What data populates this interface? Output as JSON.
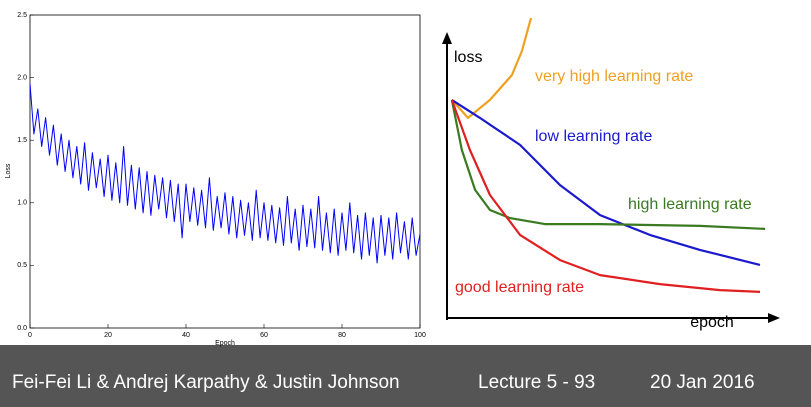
{
  "chart_data": [
    {
      "type": "line",
      "xlabel": "Epoch",
      "ylabel": "Loss",
      "xlim": [
        0,
        100
      ],
      "ylim": [
        0,
        2.5
      ],
      "xticks": [
        0,
        20,
        40,
        60,
        80,
        100
      ],
      "yticks": [
        {
          "value": 0,
          "label": "0.0"
        },
        0.5,
        {
          "value": 1,
          "label": "1.0"
        },
        1.5,
        {
          "value": 2,
          "label": "2.0"
        },
        2.5
      ],
      "series": [
        {
          "color": "#0000ff",
          "x": [
            0,
            1,
            2,
            3,
            4,
            5,
            6,
            7,
            8,
            9,
            10,
            11,
            12,
            13,
            14,
            15,
            16,
            17,
            18,
            19,
            20,
            21,
            22,
            23,
            24,
            25,
            26,
            27,
            28,
            29,
            30,
            31,
            32,
            33,
            34,
            35,
            36,
            37,
            38,
            39,
            40,
            41,
            42,
            43,
            44,
            45,
            46,
            47,
            48,
            49,
            50,
            51,
            52,
            53,
            54,
            55,
            56,
            57,
            58,
            59,
            60,
            61,
            62,
            63,
            64,
            65,
            66,
            67,
            68,
            69,
            70,
            71,
            72,
            73,
            74,
            75,
            76,
            77,
            78,
            79,
            80,
            81,
            82,
            83,
            84,
            85,
            86,
            87,
            88,
            89,
            90,
            91,
            92,
            93,
            94,
            95,
            96,
            97,
            98,
            99,
            100
          ],
          "values": [
            1.95,
            1.55,
            1.75,
            1.45,
            1.68,
            1.38,
            1.62,
            1.3,
            1.55,
            1.25,
            1.5,
            1.2,
            1.45,
            1.15,
            1.48,
            1.1,
            1.4,
            1.12,
            1.35,
            1.05,
            1.38,
            1.02,
            1.32,
            1.0,
            1.45,
            0.98,
            1.3,
            0.95,
            1.28,
            0.92,
            1.25,
            0.9,
            1.22,
            0.95,
            1.2,
            0.88,
            1.18,
            0.85,
            1.15,
            0.72,
            1.15,
            0.85,
            1.12,
            0.82,
            1.1,
            0.8,
            1.2,
            0.78,
            1.05,
            0.8,
            1.08,
            0.75,
            1.05,
            0.72,
            1.02,
            0.74,
            1.0,
            0.7,
            1.1,
            0.72,
            1.0,
            0.7,
            0.98,
            0.68,
            0.96,
            0.66,
            1.05,
            0.68,
            0.95,
            0.62,
            0.98,
            0.65,
            0.95,
            0.64,
            1.05,
            0.62,
            0.92,
            0.6,
            0.95,
            0.58,
            0.92,
            0.62,
            1.0,
            0.6,
            0.9,
            0.55,
            0.92,
            0.58,
            0.88,
            0.52,
            0.9,
            0.58,
            0.88,
            0.55,
            0.92,
            0.6,
            0.85,
            0.55,
            0.88,
            0.58,
            0.75
          ]
        }
      ]
    },
    {
      "type": "line",
      "xlabel": "epoch",
      "ylabel": "loss",
      "xlim": [
        0,
        100
      ],
      "ylim": [
        0,
        100
      ],
      "series": [
        {
          "name": "very high learning rate",
          "color": "#f0a020",
          "x": [
            1.5,
            6.5,
            13.3,
            20.1,
            23.2,
            26
          ],
          "values": [
            72.7,
            66.7,
            72.7,
            81,
            89,
            100
          ]
        },
        {
          "name": "low learning rate",
          "color": "#1a1acc",
          "x": [
            1.5,
            10.2,
            22.6,
            35,
            47.4,
            62.8,
            78.3,
            96.9
          ],
          "values": [
            72.7,
            66.7,
            57.7,
            44.3,
            34.3,
            27.7,
            22.7,
            17.7
          ]
        },
        {
          "name": "high learning rate",
          "color": "#3a7a20",
          "x": [
            1.5,
            4.6,
            8.7,
            13.3,
            19.5,
            30.3,
            47.4,
            78.3,
            98.5
          ],
          "values": [
            72.7,
            56,
            42.7,
            36,
            33.3,
            31.3,
            31.3,
            30.7,
            29.7
          ]
        },
        {
          "name": "good learning rate",
          "color": "#e02020",
          "x": [
            1.5,
            7.1,
            13.3,
            22.6,
            35,
            47.4,
            65.9,
            84.5,
            96.9
          ],
          "values": [
            72.7,
            56,
            41,
            27.7,
            19.3,
            14.3,
            11.3,
            9.3,
            8.7
          ]
        }
      ]
    }
  ],
  "footer": {
    "authors": "Fei-Fei Li & Andrej Karpathy & Justin Johnson",
    "lecture": "Lecture 5 - 93",
    "date": "20 Jan 2016"
  }
}
